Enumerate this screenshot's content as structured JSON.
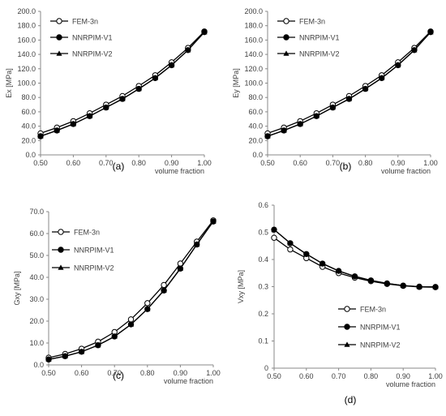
{
  "chart_data": [
    {
      "type": "line",
      "panel_label": "(a)",
      "xlabel": "volume fraction",
      "ylabel": "Ex [MPa]",
      "xlim": [
        0.5,
        1.0
      ],
      "ylim": [
        0,
        200
      ],
      "x_ticks": [
        "0.50",
        "0.60",
        "0.70",
        "0.80",
        "0.90",
        "1.00"
      ],
      "y_ticks": [
        "0.0",
        "20.0",
        "40.0",
        "60.0",
        "80.0",
        "100.0",
        "120.0",
        "140.0",
        "160.0",
        "180.0",
        "200.0"
      ],
      "legend_position": "top-left",
      "grid": false,
      "x": [
        0.5,
        0.55,
        0.6,
        0.65,
        0.7,
        0.75,
        0.8,
        0.85,
        0.9,
        0.95,
        1.0
      ],
      "series": [
        {
          "name": "FEM-3n",
          "marker": "open-circle",
          "values": [
            30,
            38,
            47,
            58,
            70,
            82,
            96,
            111,
            129,
            149,
            172
          ]
        },
        {
          "name": "NNRPIM-V1",
          "marker": "filled-circle",
          "values": [
            26,
            34,
            43,
            54,
            66,
            78,
            92,
            107,
            125,
            146,
            171
          ]
        },
        {
          "name": "NNRPIM-V2",
          "marker": "filled-triangle",
          "values": [
            26,
            34,
            43,
            54,
            66,
            78,
            92,
            107,
            125,
            146,
            171
          ]
        }
      ]
    },
    {
      "type": "line",
      "panel_label": "(b)",
      "xlabel": "volume fraction",
      "ylabel": "Ey [MPa]",
      "xlim": [
        0.5,
        1.0
      ],
      "ylim": [
        0,
        200
      ],
      "x_ticks": [
        "0.50",
        "0.60",
        "0.70",
        "0.80",
        "0.90",
        "1.00"
      ],
      "y_ticks": [
        "0.0",
        "20.0",
        "40.0",
        "60.0",
        "80.0",
        "100.0",
        "120.0",
        "140.0",
        "160.0",
        "180.0",
        "200.0"
      ],
      "legend_position": "top-left",
      "grid": false,
      "x": [
        0.5,
        0.55,
        0.6,
        0.65,
        0.7,
        0.75,
        0.8,
        0.85,
        0.9,
        0.95,
        1.0
      ],
      "series": [
        {
          "name": "FEM-3n",
          "marker": "open-circle",
          "values": [
            30,
            38,
            47,
            58,
            70,
            82,
            96,
            111,
            129,
            149,
            172
          ]
        },
        {
          "name": "NNRPIM-V1",
          "marker": "filled-circle",
          "values": [
            26,
            34,
            43,
            54,
            66,
            78,
            92,
            107,
            125,
            146,
            171
          ]
        },
        {
          "name": "NNRPIM-V2",
          "marker": "filled-triangle",
          "values": [
            26,
            34,
            43,
            54,
            66,
            78,
            92,
            107,
            125,
            146,
            171
          ]
        }
      ]
    },
    {
      "type": "line",
      "panel_label": "(c)",
      "xlabel": "volume fraction",
      "ylabel": "Gxy [MPa]",
      "xlim": [
        0.5,
        1.0
      ],
      "ylim": [
        0,
        70
      ],
      "x_ticks": [
        "0.50",
        "0.60",
        "0.70",
        "0.80",
        "0.90",
        "1.00"
      ],
      "y_ticks": [
        "0.0",
        "10.0",
        "20.0",
        "30.0",
        "40.0",
        "50.0",
        "60.0",
        "70.0"
      ],
      "legend_position": "top-left",
      "grid": false,
      "x": [
        0.5,
        0.55,
        0.6,
        0.65,
        0.7,
        0.75,
        0.8,
        0.85,
        0.9,
        0.95,
        1.0
      ],
      "series": [
        {
          "name": "FEM-3n",
          "marker": "open-circle",
          "values": [
            3.3,
            5.0,
            7.4,
            10.6,
            15.0,
            20.8,
            28.2,
            36.5,
            46.3,
            56.3,
            66.0
          ]
        },
        {
          "name": "NNRPIM-V1",
          "marker": "filled-circle",
          "values": [
            2.5,
            4.0,
            6.0,
            9.0,
            13.0,
            18.5,
            25.5,
            34.0,
            44.0,
            55.0,
            65.5
          ]
        },
        {
          "name": "NNRPIM-V2",
          "marker": "filled-triangle",
          "values": [
            2.5,
            4.0,
            6.0,
            9.0,
            13.0,
            18.5,
            25.5,
            34.0,
            44.0,
            55.0,
            65.5
          ]
        }
      ]
    },
    {
      "type": "line",
      "panel_label": "(d)",
      "xlabel": "volume fraction",
      "ylabel": "Vxy [MPa]",
      "xlim": [
        0.5,
        1.0
      ],
      "ylim": [
        0,
        0.6
      ],
      "x_ticks": [
        "0.50",
        "0.60",
        "0.70",
        "0.80",
        "0.90",
        "1.00"
      ],
      "y_ticks": [
        "0",
        "0.1",
        "0.2",
        "0.3",
        "0.4",
        "0.5",
        "0.6"
      ],
      "legend_position": "bottom-left",
      "grid": false,
      "x": [
        0.5,
        0.55,
        0.6,
        0.65,
        0.7,
        0.75,
        0.8,
        0.85,
        0.9,
        0.95,
        1.0
      ],
      "series": [
        {
          "name": "FEM-3n",
          "marker": "open-circle",
          "values": [
            0.48,
            0.437,
            0.405,
            0.373,
            0.35,
            0.333,
            0.32,
            0.31,
            0.303,
            0.299,
            0.298
          ]
        },
        {
          "name": "NNRPIM-V1",
          "marker": "filled-circle",
          "values": [
            0.51,
            0.46,
            0.42,
            0.385,
            0.358,
            0.338,
            0.323,
            0.312,
            0.304,
            0.3,
            0.299
          ]
        },
        {
          "name": "NNRPIM-V2",
          "marker": "filled-triangle",
          "values": [
            0.51,
            0.46,
            0.42,
            0.385,
            0.358,
            0.338,
            0.323,
            0.312,
            0.304,
            0.3,
            0.299
          ]
        }
      ]
    }
  ]
}
